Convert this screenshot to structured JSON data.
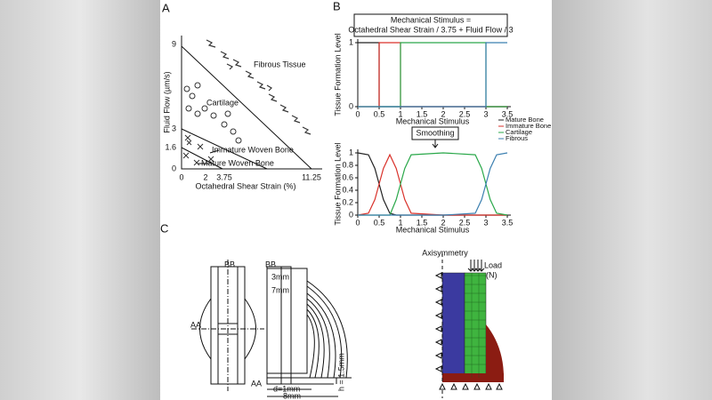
{
  "panel_labels": [
    "A",
    "B",
    "C"
  ],
  "panel_a": {
    "y_label": "Fluid Flow (µm/s)",
    "x_label": "Octahedral Shear Strain (%)",
    "y_ticks": [
      "9",
      "3",
      "1.6",
      "0"
    ],
    "x_ticks": [
      "0",
      "2",
      "3.75",
      "11.25"
    ],
    "regions": [
      "Fibrous Tissue",
      "Cartilage",
      "Immature Woven Bone",
      "Mature Woven Bone"
    ]
  },
  "chart_data": [
    {
      "type": "line",
      "title": "Mechanical Stimulus =",
      "subtitle": "Octahedral Shear Strain / 3.75 + Fluid Flow / 3",
      "y_label": "Tissue Formation Level",
      "x_label": "Mechanical Stimulus",
      "xlim": [
        0,
        3.5
      ],
      "ylim": [
        0,
        1
      ],
      "xticks": [
        0,
        0.5,
        1,
        1.5,
        2,
        2.5,
        3,
        3.5
      ],
      "yticks": [
        0,
        1
      ],
      "series": [
        {
          "color": "#222222",
          "x": [
            0,
            0.5,
            0.5,
            3.5
          ],
          "values": [
            1,
            1,
            0,
            0
          ]
        },
        {
          "color": "#d9322b",
          "x": [
            0,
            0.5,
            0.5,
            1,
            1,
            3.5
          ],
          "values": [
            0,
            0,
            1,
            1,
            0,
            0
          ]
        },
        {
          "color": "#2aa84a",
          "x": [
            0,
            1,
            1,
            3,
            3,
            3.5
          ],
          "values": [
            0,
            0,
            1,
            1,
            0,
            0
          ]
        },
        {
          "color": "#3b7fb0",
          "x": [
            0,
            3,
            3,
            3.5
          ],
          "values": [
            0,
            0,
            1,
            1
          ]
        }
      ]
    },
    {
      "type": "line",
      "annotation": "Smoothing",
      "y_label": "Tissue Formation Level",
      "x_label": "Mechanical Stimulus",
      "xlim": [
        0,
        3.5
      ],
      "ylim": [
        0,
        1
      ],
      "xticks": [
        0,
        0.5,
        1,
        1.5,
        2,
        2.5,
        3,
        3.5
      ],
      "yticks": [
        0,
        0.2,
        0.4,
        0.6,
        0.8,
        1
      ],
      "x": [
        0,
        0.25,
        0.4,
        0.5,
        0.6,
        0.75,
        0.9,
        1,
        1.1,
        1.25,
        2,
        2.75,
        2.9,
        3,
        3.1,
        3.25,
        3.5
      ],
      "series": [
        {
          "name": "Mature Bone",
          "color": "#222222",
          "values": [
            1,
            0.97,
            0.75,
            0.5,
            0.25,
            0.03,
            0,
            0,
            0,
            0,
            0,
            0,
            0,
            0,
            0,
            0,
            0
          ]
        },
        {
          "name": "Immature Bone",
          "color": "#d9322b",
          "values": [
            0,
            0.03,
            0.25,
            0.5,
            0.75,
            0.97,
            0.75,
            0.5,
            0.25,
            0.03,
            0,
            0,
            0,
            0,
            0,
            0,
            0
          ]
        },
        {
          "name": "Cartilage",
          "color": "#2aa84a",
          "values": [
            0,
            0,
            0,
            0,
            0,
            0,
            0.25,
            0.5,
            0.75,
            0.97,
            1,
            0.97,
            0.75,
            0.5,
            0.25,
            0.03,
            0
          ]
        },
        {
          "name": "Fibrous",
          "color": "#3b7fb0",
          "values": [
            0,
            0,
            0,
            0,
            0,
            0,
            0,
            0,
            0,
            0,
            0,
            0.03,
            0.25,
            0.5,
            0.75,
            0.97,
            1
          ]
        }
      ]
    }
  ],
  "panel_c": {
    "labels": [
      "BB",
      "BB",
      "AA",
      "AA",
      "3mm",
      "7mm",
      "d=1mm",
      "8mm",
      "h = 1.5mm"
    ],
    "mesh": {
      "title": "Axisymmetry",
      "load": "Load",
      "load_unit": "(N)"
    }
  }
}
